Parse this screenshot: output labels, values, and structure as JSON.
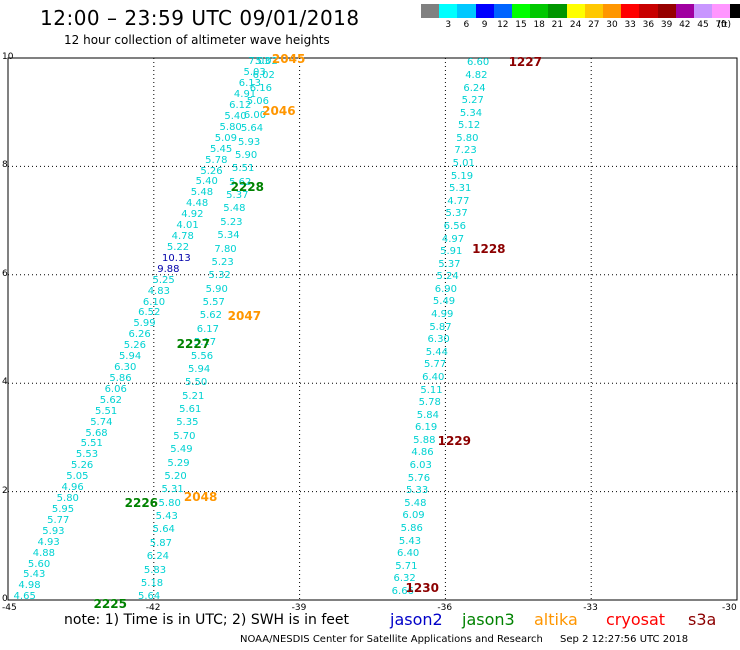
{
  "header": {
    "title": "12:00 – 23:59 UTC 09/01/2018",
    "subtitle": "12 hour collection of altimeter wave heights"
  },
  "colorbar": {
    "unit": "(ft)",
    "bins": [
      {
        "color": "#808080",
        "label": ""
      },
      {
        "color": "#00ffff",
        "label": "3"
      },
      {
        "color": "#00c8ff",
        "label": "6"
      },
      {
        "color": "#0000ff",
        "label": "9"
      },
      {
        "color": "#0064ff",
        "label": "12"
      },
      {
        "color": "#00ff00",
        "label": "15"
      },
      {
        "color": "#00c800",
        "label": "18"
      },
      {
        "color": "#009600",
        "label": "21"
      },
      {
        "color": "#ffff00",
        "label": "24"
      },
      {
        "color": "#ffc800",
        "label": "27"
      },
      {
        "color": "#ff9600",
        "label": "30"
      },
      {
        "color": "#ff0000",
        "label": "33"
      },
      {
        "color": "#c80000",
        "label": "36"
      },
      {
        "color": "#960000",
        "label": "39"
      },
      {
        "color": "#a000a0",
        "label": "42"
      },
      {
        "color": "#c896ff",
        "label": "45"
      },
      {
        "color": "#ff96ff",
        "label": "70"
      },
      {
        "color": "#000000",
        "label": ""
      }
    ]
  },
  "map": {
    "x_ticks": [
      "-45",
      "-42",
      "-39",
      "-36",
      "-33",
      "-30"
    ],
    "y_ticks": [
      "0",
      "2",
      "4",
      "6",
      "8",
      "10"
    ],
    "lon_range": [
      -45,
      -30
    ],
    "lat_range": [
      0,
      10
    ]
  },
  "colors": {
    "jason2": "#0000c8",
    "jason3": "#008200",
    "altika": "#ff9600",
    "cryosat": "#ff0000",
    "s3a": "#8c0000",
    "swh_low": "#00d2d2",
    "swh_high": "#0000aa"
  },
  "tracks": [
    {
      "name": "track-2225",
      "start": [
        -44.68,
        0.05
      ],
      "end": [
        -39.85,
        9.92
      ],
      "values": [
        "4.65",
        "4.98",
        "5.43",
        "5.60",
        "4.88",
        "4.93",
        "5.93",
        "5.77",
        "5.95",
        "5.80",
        "4.96",
        "5.05",
        "5.26",
        "5.53",
        "5.51",
        "5.68",
        "5.74",
        "5.51",
        "5.62",
        "6.06",
        "5.86",
        "6.30",
        "5.94",
        "5.26",
        "6.26",
        "5.99",
        "6.52",
        "6.10",
        "4.83",
        "5.25",
        "9.88",
        "10.13",
        "5.22",
        "4.78",
        "4.01",
        "4.92",
        "4.48",
        "5.48",
        "5.40",
        "5.26",
        "5.78",
        "5.45",
        "5.09",
        "5.80",
        "5.40",
        "6.12",
        "4.91",
        "6.13",
        "5.03",
        "7.03"
      ]
    },
    {
      "name": "track-2226",
      "start": [
        -42.12,
        0.05
      ],
      "end": [
        -39.7,
        9.92
      ],
      "values": [
        "5.64",
        "5.18",
        "5.83",
        "6.24",
        "5.87",
        "5.64",
        "5.43",
        "5.80",
        "5.31",
        "5.20",
        "5.29",
        "5.49",
        "5.70",
        "5.35",
        "5.61",
        "5.21",
        "5.50",
        "5.94",
        "5.56",
        "5.17",
        "6.17",
        "5.62",
        "5.57",
        "5.90",
        "5.32",
        "5.23",
        "7.80",
        "5.34",
        "5.23",
        "5.48",
        "5.37",
        "5.62",
        "5.51",
        "5.90",
        "5.93",
        "5.64",
        "6.00",
        "5.06",
        "6.16",
        "6.02",
        "5.02"
      ]
    },
    {
      "name": "track-1227",
      "start": [
        -36.9,
        0.15
      ],
      "end": [
        -35.35,
        9.9
      ],
      "values": [
        "6.66",
        "6.32",
        "5.71",
        "6.40",
        "5.43",
        "5.86",
        "6.09",
        "5.48",
        "5.33",
        "5.76",
        "6.03",
        "4.86",
        "5.88",
        "6.19",
        "5.84",
        "5.78",
        "5.11",
        "6.40",
        "5.77",
        "5.44",
        "6.30",
        "5.87",
        "4.99",
        "5.49",
        "6.90",
        "5.24",
        "5.37",
        "5.91",
        "4.97",
        "6.56",
        "5.37",
        "4.77",
        "5.31",
        "5.19",
        "5.01",
        "7.23",
        "5.80",
        "5.12",
        "5.34",
        "5.27",
        "6.24",
        "4.82",
        "6.60"
      ]
    }
  ],
  "orbit_labels": [
    {
      "text": "2045",
      "sat": "altika",
      "lon": -39.57,
      "lat": 9.97
    },
    {
      "text": "2046",
      "sat": "altika",
      "lon": -39.77,
      "lat": 9.0
    },
    {
      "text": "2228",
      "sat": "jason3",
      "lon": -40.42,
      "lat": 7.6
    },
    {
      "text": "1227",
      "sat": "s3a",
      "lon": -34.7,
      "lat": 9.9
    },
    {
      "text": "1228",
      "sat": "s3a",
      "lon": -35.45,
      "lat": 6.45
    },
    {
      "text": "2047",
      "sat": "altika",
      "lon": -40.48,
      "lat": 5.22
    },
    {
      "text": "2227",
      "sat": "jason3",
      "lon": -41.53,
      "lat": 4.7
    },
    {
      "text": "1229",
      "sat": "s3a",
      "lon": -36.16,
      "lat": 2.92
    },
    {
      "text": "2048",
      "sat": "altika",
      "lon": -41.38,
      "lat": 1.88
    },
    {
      "text": "2226",
      "sat": "jason3",
      "lon": -42.6,
      "lat": 1.78
    },
    {
      "text": "1230",
      "sat": "s3a",
      "lon": -36.82,
      "lat": 0.2
    },
    {
      "text": "2225",
      "sat": "jason3",
      "lon": -43.24,
      "lat": -0.1
    }
  ],
  "note": "note:  1) Time is in UTC;  2) SWH is in feet",
  "legend": [
    {
      "text": "jason2",
      "sat": "jason2"
    },
    {
      "text": "jason3",
      "sat": "jason3"
    },
    {
      "text": "altika",
      "sat": "altika"
    },
    {
      "text": "cryosat",
      "sat": "cryosat"
    },
    {
      "text": "s3a",
      "sat": "s3a"
    }
  ],
  "footer": {
    "credit": "NOAA/NESDIS Center for Satellite Applications and Research",
    "timestamp": "Sep  2 12:27:56 UTC 2018"
  }
}
